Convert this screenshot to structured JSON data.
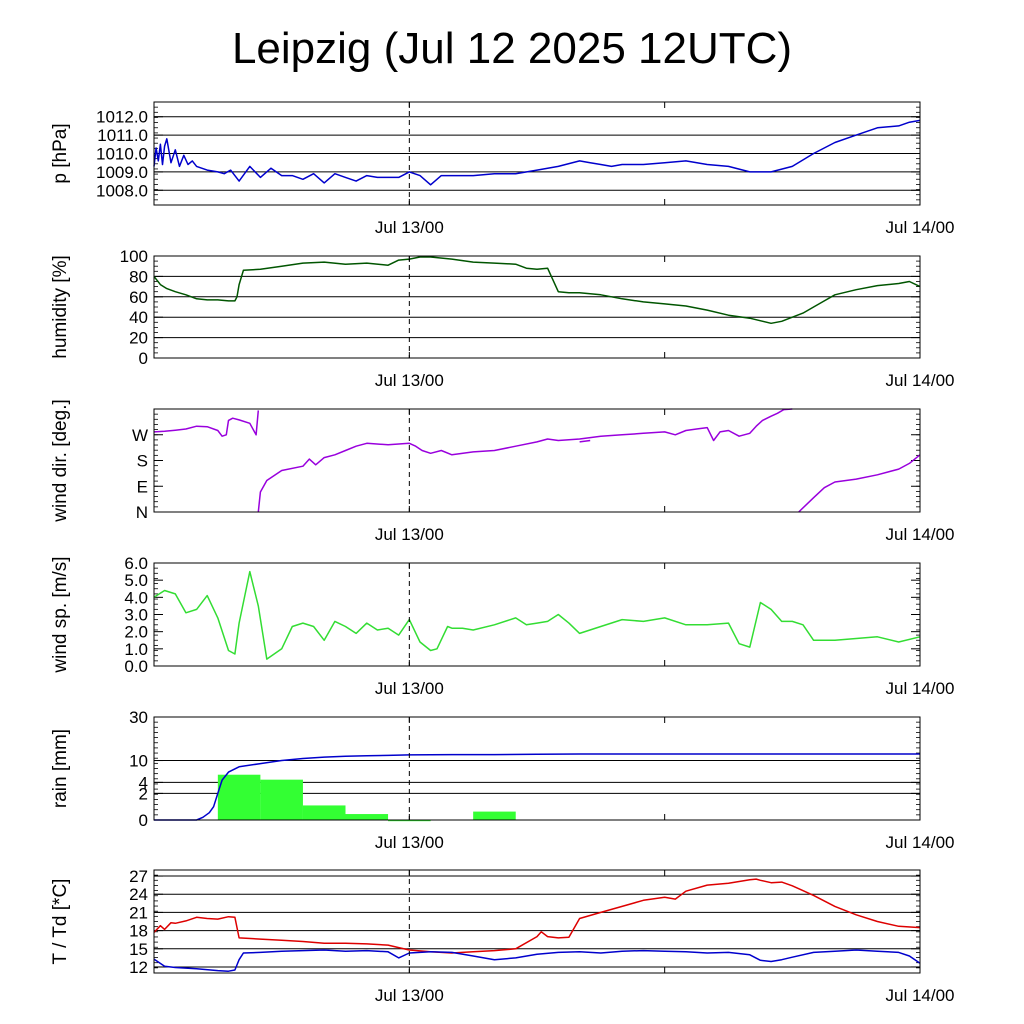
{
  "title": "Leipzig (Jul 12 2025 12UTC)",
  "x_ticks": [
    {
      "label": "Jul 13/00",
      "t": 12
    },
    {
      "label": "Jul 14/00",
      "t": 36
    }
  ],
  "colors": {
    "pressure": "#0000cc",
    "humidity": "#005500",
    "wind_dir": "#9900dd",
    "wind_speed": "#33dd33",
    "rain_bar": "#33ff33",
    "rain_acc": "#0000cc",
    "temperature": "#dd0000",
    "dewpoint": "#0000cc"
  },
  "chart_data": [
    {
      "type": "line",
      "id": "pressure",
      "ylabel": "p [hPa]",
      "ylim": [
        1007.2,
        1012.8
      ],
      "grid": true,
      "yticks": [
        {
          "v": 1008.0,
          "label": "1008.0"
        },
        {
          "v": 1009.0,
          "label": "1009.0"
        },
        {
          "v": 1010.0,
          "label": "1010.0"
        },
        {
          "v": 1011.0,
          "label": "1011.0"
        },
        {
          "v": 1012.0,
          "label": "1012.0"
        }
      ],
      "series": [
        {
          "key": "pressure",
          "x": [
            0,
            0.1,
            0.2,
            0.3,
            0.4,
            0.5,
            0.6,
            0.8,
            1.0,
            1.2,
            1.4,
            1.6,
            1.8,
            2.0,
            2.5,
            3.0,
            3.3,
            3.6,
            4.0,
            4.5,
            5.0,
            5.5,
            6.0,
            6.5,
            7.0,
            7.5,
            8.0,
            8.5,
            9.0,
            9.5,
            10.0,
            10.5,
            11.0,
            11.5,
            12.0,
            12.5,
            13.0,
            13.5,
            14,
            15,
            16,
            17,
            18,
            19,
            20,
            20.5,
            21,
            21.5,
            22,
            22.5,
            23,
            24,
            25,
            26,
            27,
            28,
            29,
            30,
            31,
            32,
            33,
            34,
            35,
            35.5,
            36
          ],
          "y": [
            1009.3,
            1010.3,
            1009.6,
            1010.5,
            1009.4,
            1010.4,
            1010.8,
            1009.5,
            1010.2,
            1009.3,
            1009.9,
            1009.4,
            1009.6,
            1009.3,
            1009.1,
            1009.0,
            1008.9,
            1009.1,
            1008.5,
            1009.3,
            1008.7,
            1009.2,
            1008.8,
            1008.8,
            1008.6,
            1008.9,
            1008.4,
            1008.9,
            1008.7,
            1008.5,
            1008.8,
            1008.7,
            1008.7,
            1008.7,
            1009.0,
            1008.8,
            1008.3,
            1008.8,
            1008.8,
            1008.8,
            1008.9,
            1008.9,
            1009.1,
            1009.3,
            1009.6,
            1009.5,
            1009.4,
            1009.3,
            1009.4,
            1009.4,
            1009.4,
            1009.5,
            1009.6,
            1009.4,
            1009.3,
            1009.0,
            1009.0,
            1009.3,
            1010.0,
            1010.6,
            1011.0,
            1011.4,
            1011.5,
            1011.7,
            1011.8
          ]
        }
      ]
    },
    {
      "type": "line",
      "id": "humidity",
      "ylabel": "humidity [%]",
      "ylim": [
        0,
        100
      ],
      "grid": true,
      "yticks": [
        {
          "v": 0,
          "label": "0"
        },
        {
          "v": 20,
          "label": "20"
        },
        {
          "v": 40,
          "label": "40"
        },
        {
          "v": 60,
          "label": "60"
        },
        {
          "v": 80,
          "label": "80"
        },
        {
          "v": 100,
          "label": "100"
        }
      ],
      "series": [
        {
          "key": "humidity",
          "x": [
            0,
            0.3,
            0.6,
            1.0,
            1.5,
            2.0,
            2.5,
            3.0,
            3.5,
            3.8,
            3.9,
            4.0,
            4.2,
            5,
            6,
            7,
            8,
            9,
            10,
            11,
            11.5,
            12,
            12.5,
            13,
            14,
            15,
            16,
            17,
            17.5,
            18,
            18.5,
            19,
            19.5,
            20,
            21,
            22,
            23,
            24,
            25,
            26,
            27,
            28,
            29,
            29.5,
            30,
            30.5,
            31,
            31.5,
            32,
            33,
            34,
            35,
            35.5,
            36
          ],
          "y": [
            80,
            72,
            68,
            65,
            62,
            58,
            57,
            57,
            56,
            56,
            60,
            72,
            86,
            87,
            90,
            93,
            94,
            92,
            93,
            91,
            96,
            97,
            99,
            99,
            97,
            94,
            93,
            92,
            88,
            87,
            88,
            65,
            64,
            64,
            62,
            58,
            55,
            53,
            51,
            47,
            42,
            39,
            34,
            36,
            40,
            44,
            50,
            56,
            62,
            67,
            71,
            73,
            75,
            70
          ]
        }
      ]
    },
    {
      "type": "line",
      "id": "wind_dir",
      "ylabel": "wind dir. [deg.]",
      "ylim": [
        0,
        360
      ],
      "grid": false,
      "yticks": [
        {
          "v": 0,
          "label": "N"
        },
        {
          "v": 90,
          "label": "E"
        },
        {
          "v": 180,
          "label": "S"
        },
        {
          "v": 270,
          "label": "W"
        }
      ],
      "series": [
        {
          "key": "wind_dir",
          "x": [
            0,
            0.5,
            1,
            1.5,
            2,
            2.5,
            3,
            3.2,
            3.4,
            3.5,
            3.7,
            4,
            4.5,
            4.8,
            4.9
          ],
          "y": [
            280,
            282,
            286,
            290,
            300,
            298,
            285,
            265,
            270,
            320,
            328,
            322,
            310,
            270,
            355
          ]
        },
        {
          "key": "wind_dir",
          "x": [
            4.9,
            5,
            5.3,
            6,
            7,
            7.3,
            7.6,
            8,
            8.5,
            9,
            9.5,
            10,
            11,
            12,
            12.3,
            12.6,
            13,
            13.5,
            14,
            15,
            16,
            17,
            18,
            18.5,
            19,
            20,
            21,
            22,
            23,
            24,
            24.5,
            25,
            25.5,
            26,
            26.3,
            26.6,
            27,
            27.5,
            28,
            28.3,
            28.6,
            29,
            29.3,
            29.6,
            30
          ],
          "y": [
            0,
            70,
            110,
            145,
            160,
            185,
            165,
            190,
            200,
            215,
            230,
            240,
            235,
            240,
            230,
            215,
            205,
            215,
            200,
            210,
            215,
            230,
            245,
            255,
            250,
            255,
            265,
            270,
            275,
            280,
            270,
            285,
            290,
            295,
            250,
            280,
            285,
            265,
            275,
            300,
            320,
            335,
            345,
            358,
            360
          ]
        },
        {
          "key": "wind_dir",
          "x": [
            20,
            20.5
          ],
          "y": [
            245,
            250
          ]
        },
        {
          "key": "wind_dir",
          "x": [
            30.3,
            31,
            31.5,
            32,
            33,
            34,
            35,
            35.5,
            36
          ],
          "y": [
            0,
            50,
            85,
            105,
            115,
            130,
            150,
            170,
            200
          ]
        }
      ]
    },
    {
      "type": "line",
      "id": "wind_speed",
      "ylabel": "wind sp. [m/s]",
      "ylim": [
        0,
        6
      ],
      "grid": false,
      "yticks": [
        {
          "v": 0.0,
          "label": "0.0"
        },
        {
          "v": 1.0,
          "label": "1.0"
        },
        {
          "v": 2.0,
          "label": "2.0"
        },
        {
          "v": 3.0,
          "label": "3.0"
        },
        {
          "v": 4.0,
          "label": "4.0"
        },
        {
          "v": 5.0,
          "label": "5.0"
        },
        {
          "v": 6.0,
          "label": "6.0"
        }
      ],
      "series": [
        {
          "key": "wind_speed",
          "x": [
            0,
            0.5,
            1.0,
            1.5,
            2.0,
            2.5,
            3.0,
            3.5,
            3.8,
            4.0,
            4.5,
            4.9,
            5.3,
            6,
            6.5,
            7,
            7.5,
            8,
            8.5,
            9,
            9.5,
            10,
            10.5,
            11,
            11.5,
            12,
            12.5,
            13,
            13.3,
            13.8,
            14,
            14.5,
            15,
            16,
            17,
            17.5,
            18,
            18.5,
            19,
            19.5,
            20,
            21,
            22,
            23,
            24,
            25,
            26,
            27,
            27.5,
            28,
            28.5,
            29,
            29.5,
            30,
            30.5,
            31,
            32,
            33,
            34,
            35,
            36
          ],
          "y": [
            4.0,
            4.4,
            4.2,
            3.1,
            3.3,
            4.1,
            2.8,
            0.9,
            0.7,
            2.5,
            5.5,
            3.5,
            0.4,
            1.0,
            2.3,
            2.5,
            2.3,
            1.5,
            2.6,
            2.3,
            1.9,
            2.5,
            2.1,
            2.2,
            1.8,
            2.7,
            1.4,
            0.9,
            1.0,
            2.3,
            2.2,
            2.2,
            2.1,
            2.4,
            2.8,
            2.4,
            2.5,
            2.6,
            3.0,
            2.5,
            1.9,
            2.3,
            2.7,
            2.6,
            2.8,
            2.4,
            2.4,
            2.5,
            1.3,
            1.1,
            3.7,
            3.3,
            2.6,
            2.6,
            2.4,
            1.5,
            1.5,
            1.6,
            1.7,
            1.4,
            1.7
          ]
        }
      ]
    },
    {
      "type": "bar",
      "id": "rain",
      "ylabel": "rain [mm]",
      "yscale": "sqrt",
      "ylim": [
        0,
        30
      ],
      "grid": true,
      "yticks": [
        {
          "v": 0,
          "label": "0"
        },
        {
          "v": 2,
          "label": "2"
        },
        {
          "v": 4,
          "label": "4"
        },
        {
          "v": 10,
          "label": "10"
        },
        {
          "v": 30,
          "label": "30"
        }
      ],
      "bars": [
        {
          "t0": 3,
          "t1": 5,
          "value": 5.8
        },
        {
          "t0": 5,
          "t1": 7,
          "value": 4.6
        },
        {
          "t0": 7,
          "t1": 9,
          "value": 0.6
        },
        {
          "t0": 9,
          "t1": 11,
          "value": 0.1
        },
        {
          "t0": 11,
          "t1": 13,
          "value": 0.0
        },
        {
          "t0": 15,
          "t1": 17,
          "value": 0.2
        }
      ],
      "accumulated": {
        "key": "rain_acc",
        "x": [
          0,
          2,
          2.3,
          2.6,
          2.8,
          3.0,
          3.2,
          3.5,
          4,
          5,
          6,
          7,
          8,
          9,
          10,
          11,
          12,
          14,
          16,
          18,
          20,
          24,
          30,
          36
        ],
        "y": [
          0,
          0,
          0.02,
          0.15,
          0.5,
          2.0,
          4.5,
          6.5,
          8.0,
          9.0,
          10.0,
          10.7,
          11.2,
          11.5,
          11.7,
          11.8,
          12.0,
          12.1,
          12.1,
          12.2,
          12.3,
          12.3,
          12.3,
          12.3
        ]
      }
    },
    {
      "type": "line",
      "id": "temp",
      "ylabel": "T / Td [*C]",
      "ylim": [
        11,
        28
      ],
      "grid": true,
      "yticks": [
        {
          "v": 12,
          "label": "12"
        },
        {
          "v": 15,
          "label": "15"
        },
        {
          "v": 18,
          "label": "18"
        },
        {
          "v": 21,
          "label": "21"
        },
        {
          "v": 24,
          "label": "24"
        },
        {
          "v": 27,
          "label": "27"
        }
      ],
      "series": [
        {
          "key": "temperature",
          "name": "T",
          "x": [
            0,
            0.3,
            0.5,
            0.8,
            1,
            1.5,
            2,
            2.5,
            3,
            3.5,
            3.8,
            4,
            5,
            6,
            7,
            8,
            9,
            10,
            11,
            11.5,
            12,
            13,
            14,
            15,
            16,
            17,
            18,
            18.2,
            18.5,
            19,
            19.5,
            20,
            21,
            22,
            23,
            24,
            24.5,
            25,
            26,
            27,
            28,
            28.3,
            28.5,
            29,
            29.5,
            30,
            31,
            32,
            33,
            34,
            35,
            36
          ],
          "y": [
            17.7,
            18.8,
            18.2,
            19.3,
            19.2,
            19.6,
            20.2,
            20.0,
            19.9,
            20.3,
            20.2,
            16.8,
            16.6,
            16.4,
            16.2,
            15.9,
            15.9,
            15.8,
            15.6,
            15.2,
            14.8,
            14.5,
            14.3,
            14.5,
            14.7,
            15.0,
            17.0,
            17.8,
            17.0,
            16.8,
            16.9,
            20.0,
            21.0,
            22.0,
            23.0,
            23.5,
            23.2,
            24.5,
            25.5,
            25.8,
            26.4,
            26.5,
            26.3,
            25.9,
            26.0,
            25.4,
            23.8,
            22.0,
            20.6,
            19.5,
            18.7,
            18.5
          ]
        },
        {
          "key": "dewpoint",
          "name": "Td",
          "x": [
            0,
            0.5,
            1,
            2,
            3,
            3.5,
            3.8,
            4.0,
            4.2,
            5,
            6,
            7,
            8,
            9,
            10,
            11,
            11.5,
            12,
            13,
            14,
            15,
            16,
            17,
            18,
            19,
            20,
            21,
            22,
            23,
            24,
            25,
            26,
            27,
            28,
            28.5,
            29,
            29.5,
            30,
            31,
            32,
            33,
            34,
            35,
            35.5,
            36
          ],
          "y": [
            13.3,
            12.1,
            11.9,
            11.7,
            11.4,
            11.3,
            11.5,
            13.2,
            14.3,
            14.4,
            14.6,
            14.7,
            14.8,
            14.6,
            14.7,
            14.5,
            13.5,
            14.3,
            14.5,
            14.4,
            13.8,
            13.2,
            13.5,
            14.1,
            14.4,
            14.5,
            14.3,
            14.6,
            14.7,
            14.6,
            14.5,
            14.3,
            14.4,
            14.0,
            13.1,
            12.9,
            13.2,
            13.6,
            14.4,
            14.6,
            14.8,
            14.6,
            14.4,
            13.8,
            12.6
          ]
        }
      ]
    }
  ]
}
